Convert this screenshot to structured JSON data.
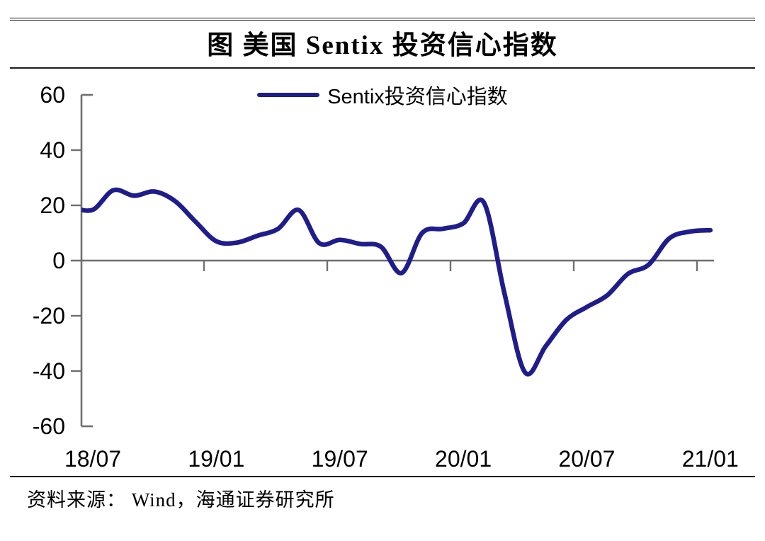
{
  "figure": {
    "title": "图 美国 Sentix 投资信心指数",
    "source": "资料来源： Wind，海通证券研究所"
  },
  "legend": {
    "label": "Sentix投资信心指数"
  },
  "colors": {
    "line": "#1F1C8B",
    "axis": "#6F6F6F",
    "text": "#000000",
    "rule": "#1C1C1C"
  },
  "chart_data": {
    "type": "line",
    "title": "图 美国 Sentix 投资信心指数",
    "xlabel": "",
    "ylabel": "",
    "ylim": [
      -60,
      60
    ],
    "y_ticks": [
      60,
      40,
      20,
      0,
      -20,
      -40,
      -60
    ],
    "x_tick_labels": [
      "18/07",
      "19/01",
      "19/07",
      "20/01",
      "20/07",
      "21/01"
    ],
    "grid": "zero-line-only",
    "legend_position": "top-center",
    "series": [
      {
        "name": "Sentix投资信心指数",
        "color": "#1F1C8B",
        "x": [
          "18/06",
          "18/07",
          "18/08",
          "18/09",
          "18/10",
          "18/11",
          "18/12",
          "19/01",
          "19/02",
          "19/03",
          "19/04",
          "19/05",
          "19/06",
          "19/07",
          "19/08",
          "19/09",
          "19/10",
          "19/11",
          "19/12",
          "20/01",
          "20/02",
          "20/03",
          "20/04",
          "20/05",
          "20/06",
          "20/07",
          "20/08",
          "20/09",
          "20/10",
          "20/11",
          "20/12",
          "21/01"
        ],
        "values": [
          19.2,
          18.4,
          25.5,
          23.5,
          25,
          21.5,
          14,
          7,
          6.5,
          9,
          11.5,
          18.3,
          6.3,
          7.5,
          6,
          5,
          -4.5,
          10,
          11.5,
          13.5,
          21,
          -12,
          -40.5,
          -31,
          -21.5,
          -16.8,
          -12.5,
          -4.8,
          -1.5,
          8,
          10.5,
          11
        ]
      }
    ]
  }
}
